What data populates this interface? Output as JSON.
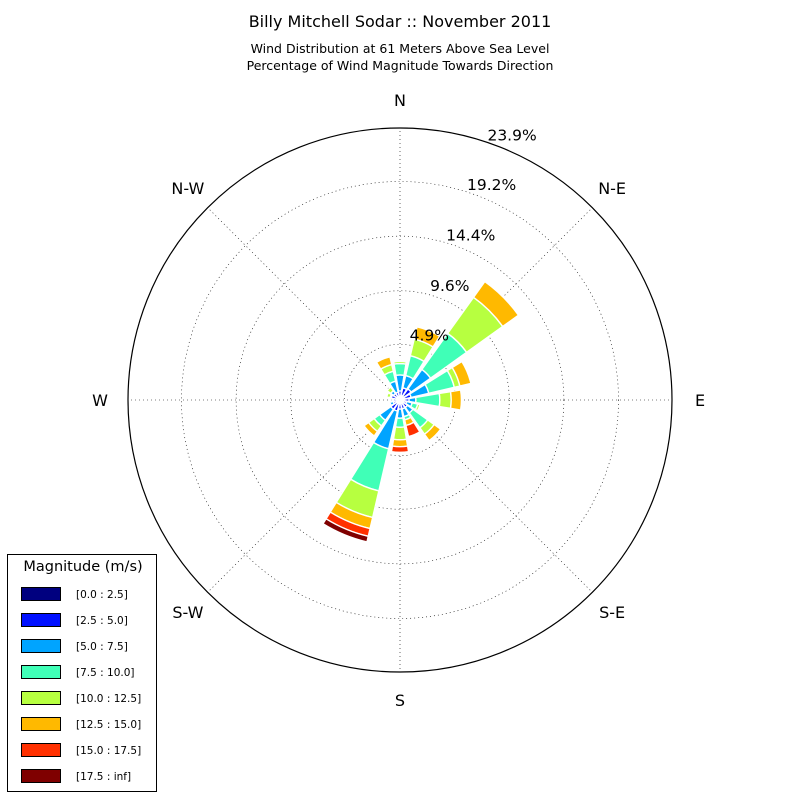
{
  "title": "Billy Mitchell Sodar :: November 2011",
  "subtitle_line1": "Wind Distribution at 61 Meters Above Sea Level",
  "subtitle_line2": "Percentage of Wind Magnitude Towards Direction",
  "chart_data": {
    "type": "windrose",
    "radial_max": 23.9,
    "radial_ticks": [
      "4.9%",
      "9.6%",
      "14.4%",
      "19.2%",
      "23.9%"
    ],
    "radial_tick_values": [
      4.9,
      9.6,
      14.4,
      19.2,
      23.9
    ],
    "direction_labels": [
      "N",
      "N-E",
      "E",
      "S-E",
      "S",
      "S-W",
      "W",
      "N-W"
    ],
    "grid": true,
    "legend": {
      "title": "Magnitude (m/s)",
      "placement": "bottom-left",
      "entries": [
        {
          "label": "[0.0 : 2.5]",
          "color": "#00007f"
        },
        {
          "label": "[2.5 : 5.0]",
          "color": "#0010ff"
        },
        {
          "label": "[5.0 : 7.5]",
          "color": "#00a4ff"
        },
        {
          "label": "[7.5 : 10.0]",
          "color": "#40ffb7"
        },
        {
          "label": "[10.0 : 12.5]",
          "color": "#b7ff40"
        },
        {
          "label": "[12.5 : 15.0]",
          "color": "#ffb900"
        },
        {
          "label": "[15.0 : 17.5]",
          "color": "#ff3000"
        },
        {
          "label": "[17.5 : inf]",
          "color": "#7f0000"
        }
      ]
    },
    "directions": [
      {
        "dir": 0,
        "cumulative": [
          0.3,
          0.8,
          2.2,
          3.2,
          3.4,
          3.5,
          3.6,
          3.6
        ]
      },
      {
        "dir": 22.5,
        "cumulative": [
          0.4,
          1.1,
          2.2,
          4.0,
          5.5,
          6.6,
          6.6,
          6.6
        ]
      },
      {
        "dir": 45,
        "cumulative": [
          0.4,
          1.2,
          3.3,
          7.2,
          11.1,
          12.8,
          12.8,
          12.8
        ]
      },
      {
        "dir": 67.5,
        "cumulative": [
          0.4,
          1.0,
          2.6,
          4.9,
          5.4,
          6.4,
          6.4,
          6.4
        ]
      },
      {
        "dir": 90,
        "cumulative": [
          0.4,
          0.8,
          1.4,
          3.5,
          4.5,
          5.4,
          5.4,
          5.4
        ]
      },
      {
        "dir": 112.5,
        "cumulative": [
          0.3,
          0.6,
          1.1,
          1.6,
          1.8,
          1.8,
          1.8,
          1.8
        ]
      },
      {
        "dir": 135,
        "cumulative": [
          0.4,
          0.8,
          1.4,
          3.0,
          3.7,
          4.4,
          4.5,
          4.5
        ]
      },
      {
        "dir": 157.5,
        "cumulative": [
          0.3,
          0.8,
          1.5,
          1.8,
          1.8,
          2.3,
          3.3,
          3.3
        ]
      },
      {
        "dir": 180,
        "cumulative": [
          0.3,
          0.8,
          1.6,
          2.4,
          3.5,
          4.1,
          4.6,
          4.6
        ]
      },
      {
        "dir": 202.5,
        "cumulative": [
          0.3,
          1.0,
          4.4,
          8.2,
          10.6,
          11.6,
          12.3,
          12.8
        ]
      },
      {
        "dir": 225,
        "cumulative": [
          0.3,
          1.0,
          2.2,
          2.8,
          3.4,
          3.9,
          4.0,
          4.0
        ]
      },
      {
        "dir": 247.5,
        "cumulative": [
          0.3,
          0.6,
          0.9,
          0.9,
          0.9,
          0.9,
          0.9,
          0.9
        ]
      },
      {
        "dir": 270,
        "cumulative": [
          0.3,
          0.6,
          0.7,
          0.7,
          0.7,
          0.7,
          0.7,
          0.7
        ]
      },
      {
        "dir": 292.5,
        "cumulative": [
          0.3,
          0.8,
          0.9,
          0.9,
          1.2,
          1.2,
          1.2,
          1.2
        ]
      },
      {
        "dir": 315,
        "cumulative": [
          0.3,
          0.7,
          1.0,
          1.0,
          1.4,
          1.4,
          1.4,
          1.4
        ]
      },
      {
        "dir": 337.5,
        "cumulative": [
          0.3,
          0.7,
          1.7,
          2.6,
          3.2,
          3.9,
          3.9,
          3.9
        ]
      }
    ]
  }
}
